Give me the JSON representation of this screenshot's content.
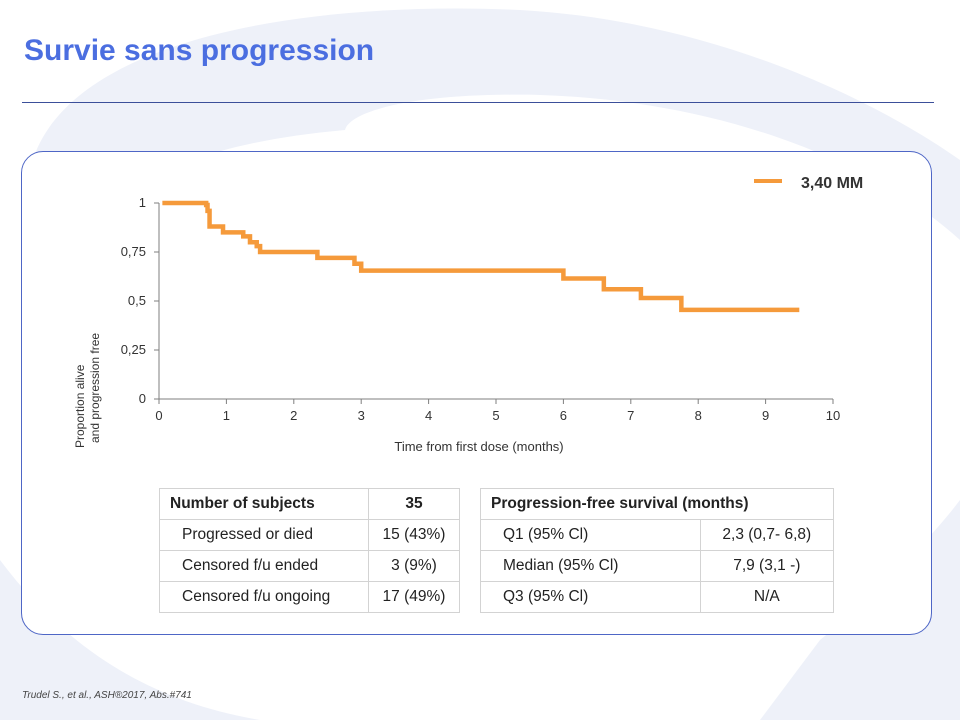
{
  "slide": {
    "title": "Survie sans progression",
    "footnote": "Trudel S., et al., ASH®2017, Abs.#741",
    "accent_color": "#4b6ee0",
    "border_color": "#4e66c6"
  },
  "chart_data": {
    "type": "line",
    "xlabel": "Time from first dose (months)",
    "ylabel_lines": [
      "Proportion  alive",
      "and progression free"
    ],
    "xlim": [
      0,
      10
    ],
    "ylim": [
      0,
      1
    ],
    "x_ticks": [
      0,
      1,
      2,
      3,
      4,
      5,
      6,
      7,
      8,
      9,
      10
    ],
    "y_ticks": [
      {
        "value": 0,
        "label": "0"
      },
      {
        "value": 0.25,
        "label": "0,25"
      },
      {
        "value": 0.5,
        "label": "0,5"
      },
      {
        "value": 0.75,
        "label": "0,75"
      },
      {
        "value": 1,
        "label": "1"
      }
    ],
    "grid": false,
    "legend_position": "top-right",
    "series": [
      {
        "name": "3,40 MM",
        "color": "#f59a3b",
        "step": true,
        "points": [
          [
            0.05,
            1.0
          ],
          [
            0.7,
            0.99
          ],
          [
            0.72,
            0.96
          ],
          [
            0.75,
            0.88
          ],
          [
            0.95,
            0.85
          ],
          [
            1.25,
            0.83
          ],
          [
            1.35,
            0.8
          ],
          [
            1.45,
            0.78
          ],
          [
            1.5,
            0.75
          ],
          [
            2.35,
            0.72
          ],
          [
            2.9,
            0.69
          ],
          [
            3.0,
            0.655
          ],
          [
            6.0,
            0.615
          ],
          [
            6.6,
            0.56
          ],
          [
            7.15,
            0.515
          ],
          [
            7.75,
            0.455
          ],
          [
            9.5,
            0.455
          ]
        ]
      }
    ]
  },
  "tables": {
    "subjects": {
      "header": [
        "Number of subjects",
        "35"
      ],
      "rows": [
        [
          "Progressed or died",
          "15 (43%)"
        ],
        [
          "Censored f/u ended",
          "3 (9%)"
        ],
        [
          "Censored f/u ongoing",
          "17 (49%)"
        ]
      ]
    },
    "pfs": {
      "header": "Progression-free survival (months)",
      "rows": [
        [
          "Q1 (95% Cl)",
          "2,3 (0,7- 6,8)"
        ],
        [
          "Median (95% Cl)",
          "7,9 (3,1 -)"
        ],
        [
          "Q3 (95% Cl)",
          "N/A"
        ]
      ]
    }
  }
}
